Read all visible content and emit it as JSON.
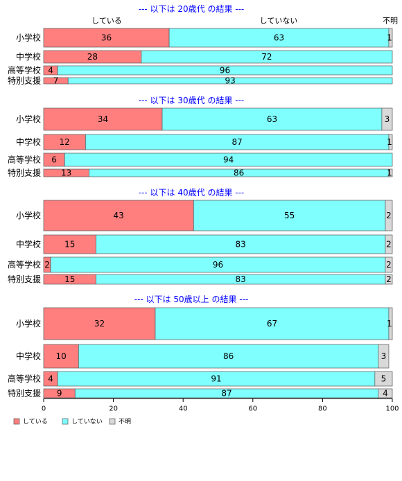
{
  "chart_data": {
    "type": "bar",
    "orientation": "horizontal",
    "stacked": true,
    "categories": [
      "小学校",
      "中学校",
      "高等学校",
      "特別支援"
    ],
    "column_headers": [
      "している",
      "していない",
      "不明"
    ],
    "xlim": [
      0,
      100
    ],
    "xticks": [
      0,
      20,
      40,
      60,
      80,
      100
    ],
    "legend": {
      "position": "bottom-left",
      "items": [
        {
          "label": "している",
          "color": "#ff7f7f"
        },
        {
          "label": "していない",
          "color": "#80ffff"
        },
        {
          "label": "不明",
          "color": "#d9d9d9"
        }
      ]
    },
    "series_colors": [
      "#ff7f7f",
      "#80ffff",
      "#d9d9d9"
    ],
    "title_color": "#0000ff",
    "panels": [
      {
        "title": "--- 以下は 20歳代 の結果 ---",
        "rows": [
          {
            "category": "小学校",
            "values": [
              36,
              63,
              1
            ],
            "labels": [
              "36",
              "63",
              "1"
            ]
          },
          {
            "category": "中学校",
            "values": [
              28,
              72,
              0
            ],
            "labels": [
              "28",
              "72",
              ""
            ]
          },
          {
            "category": "高等学校",
            "values": [
              4,
              96,
              0
            ],
            "labels": [
              "4",
              "96",
              ""
            ]
          },
          {
            "category": "特別支援",
            "values": [
              7,
              93,
              0
            ],
            "labels": [
              "7",
              "93",
              ""
            ]
          }
        ]
      },
      {
        "title": "--- 以下は 30歳代 の結果 ---",
        "rows": [
          {
            "category": "小学校",
            "values": [
              34,
              63,
              3
            ],
            "labels": [
              "34",
              "63",
              "3"
            ]
          },
          {
            "category": "中学校",
            "values": [
              12,
              87,
              1
            ],
            "labels": [
              "12",
              "87",
              "1"
            ]
          },
          {
            "category": "高等学校",
            "values": [
              6,
              94,
              0
            ],
            "labels": [
              "6",
              "94",
              ""
            ]
          },
          {
            "category": "特別支援",
            "values": [
              13,
              86,
              1
            ],
            "labels": [
              "13",
              "86",
              "1"
            ]
          }
        ]
      },
      {
        "title": "--- 以下は 40歳代 の結果 ---",
        "rows": [
          {
            "category": "小学校",
            "values": [
              43,
              55,
              2
            ],
            "labels": [
              "43",
              "55",
              "2"
            ]
          },
          {
            "category": "中学校",
            "values": [
              15,
              83,
              2
            ],
            "labels": [
              "15",
              "83",
              "2"
            ]
          },
          {
            "category": "高等学校",
            "values": [
              2,
              96,
              2
            ],
            "labels": [
              "2",
              "96",
              "2"
            ]
          },
          {
            "category": "特別支援",
            "values": [
              15,
              83,
              2
            ],
            "labels": [
              "15",
              "83",
              "2"
            ]
          }
        ]
      },
      {
        "title": "--- 以下は 50歳以上 の結果 ---",
        "rows": [
          {
            "category": "小学校",
            "values": [
              32,
              67,
              1
            ],
            "labels": [
              "32",
              "67",
              "1"
            ]
          },
          {
            "category": "中学校",
            "values": [
              10,
              86,
              3
            ],
            "labels": [
              "10",
              "86",
              "3"
            ]
          },
          {
            "category": "高等学校",
            "values": [
              4,
              91,
              5
            ],
            "labels": [
              "4",
              "91",
              "5"
            ]
          },
          {
            "category": "特別支援",
            "values": [
              9,
              87,
              4
            ],
            "labels": [
              "9",
              "87",
              "4"
            ]
          }
        ]
      }
    ]
  }
}
